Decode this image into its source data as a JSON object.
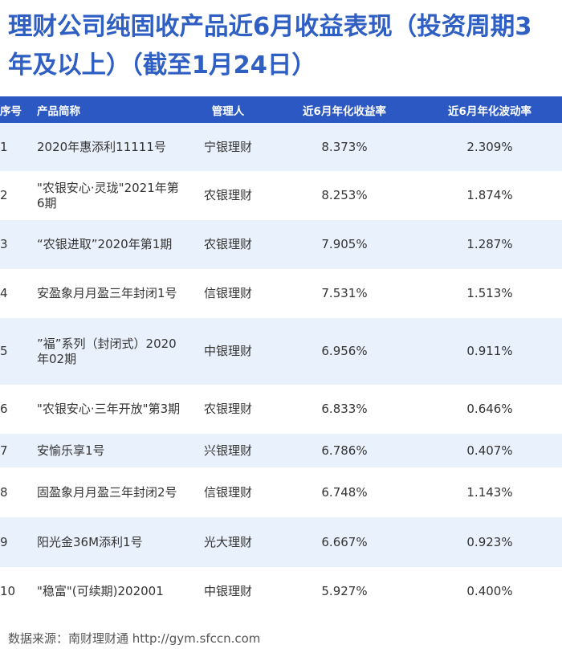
{
  "title": "理财公司纯固收产品近6月收益表现（投资周期3年及以上）（截至1月24日）",
  "table": {
    "headers": {
      "no": "序号",
      "name": "产品简称",
      "manager": "管理人",
      "return": "近6月年化收益率",
      "volatility": "近6月年化波动率"
    },
    "rows": [
      {
        "no": "1",
        "name": "2020年惠添利11111号",
        "manager": "宁银理财",
        "return": "8.373%",
        "volatility": "2.309%"
      },
      {
        "no": "2",
        "name": "\"农银安心·灵珑\"2021年第6期",
        "manager": "农银理财",
        "return": "8.253%",
        "volatility": "1.874%"
      },
      {
        "no": "3",
        "name": "“农银进取”2020年第1期",
        "manager": "农银理财",
        "return": "7.905%",
        "volatility": "1.287%"
      },
      {
        "no": "4",
        "name": "安盈象月月盈三年封闭1号",
        "manager": "信银理财",
        "return": "7.531%",
        "volatility": "1.513%"
      },
      {
        "no": "5",
        "name": "”福”系列（封闭式）2020年02期",
        "manager": "中银理财",
        "return": "6.956%",
        "volatility": "0.911%"
      },
      {
        "no": "6",
        "name": "\"农银安心·三年开放\"第3期",
        "manager": "农银理财",
        "return": "6.833%",
        "volatility": "0.646%"
      },
      {
        "no": "7",
        "name": "安愉乐享1号",
        "manager": "兴银理财",
        "return": "6.786%",
        "volatility": "0.407%"
      },
      {
        "no": "8",
        "name": "固盈象月月盈三年封闭2号",
        "manager": "信银理财",
        "return": "6.748%",
        "volatility": "1.143%"
      },
      {
        "no": "9",
        "name": "阳光金36M添利1号",
        "manager": "光大理财",
        "return": "6.667%",
        "volatility": "0.923%"
      },
      {
        "no": "10",
        "name": "\"稳富\"(可续期)202001",
        "manager": "中银理财",
        "return": "5.927%",
        "volatility": "0.400%"
      }
    ]
  },
  "source": "数据来源：南财理财通 http://gym.sfccn.com",
  "colors": {
    "title": "#2f5fc3",
    "header_bg": "#2b58c2",
    "row_alt_bg": "#e9f1fd"
  },
  "chart_data": {
    "type": "table",
    "title": "理财公司纯固收产品近6月收益表现（投资周期3年及以上）（截至1月24日）",
    "columns": [
      "序号",
      "产品简称",
      "管理人",
      "近6月年化收益率",
      "近6月年化波动率"
    ],
    "rows": [
      [
        "1",
        "2020年惠添利11111号",
        "宁银理财",
        "8.373%",
        "2.309%"
      ],
      [
        "2",
        "\"农银安心·灵珑\"2021年第6期",
        "农银理财",
        "8.253%",
        "1.874%"
      ],
      [
        "3",
        "“农银进取”2020年第1期",
        "农银理财",
        "7.905%",
        "1.287%"
      ],
      [
        "4",
        "安盈象月月盈三年封闭1号",
        "信银理财",
        "7.531%",
        "1.513%"
      ],
      [
        "5",
        "”福”系列（封闭式）2020年02期",
        "中银理财",
        "6.956%",
        "0.911%"
      ],
      [
        "6",
        "\"农银安心·三年开放\"第3期",
        "农银理财",
        "6.833%",
        "0.646%"
      ],
      [
        "7",
        "安愉乐享1号",
        "兴银理财",
        "6.786%",
        "0.407%"
      ],
      [
        "8",
        "固盈象月月盈三年封闭2号",
        "信银理财",
        "6.748%",
        "1.143%"
      ],
      [
        "9",
        "阳光金36M添利1号",
        "光大理财",
        "6.667%",
        "0.923%"
      ],
      [
        "10",
        "\"稳富\"(可续期)202001",
        "中银理财",
        "5.927%",
        "0.400%"
      ]
    ]
  }
}
